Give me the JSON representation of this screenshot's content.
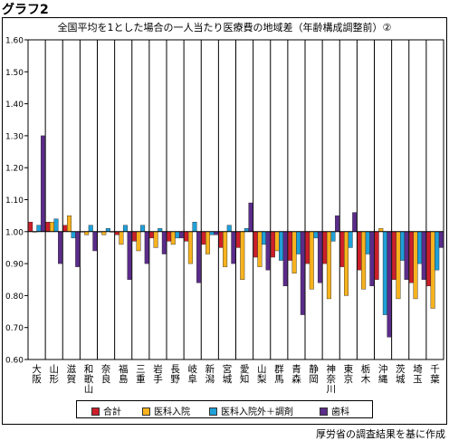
{
  "figure_label": "グラフ2",
  "source_note": "厚労省の調査結果を基に作成",
  "chart_data": {
    "type": "bar",
    "title": "全国平均を1とした場合の一人当たり医療費の地域差（年齢構成調整前）②",
    "xlabel": "",
    "ylabel": "",
    "ylim": [
      0.6,
      1.6
    ],
    "yticks": [
      "0.60",
      "0.70",
      "0.80",
      "0.90",
      "1.00",
      "1.10",
      "1.20",
      "1.30",
      "1.40",
      "1.50",
      "1.60"
    ],
    "baseline": 1.0,
    "grid": false,
    "legend_position": "bottom",
    "categories": [
      "大阪",
      "山形",
      "滋賀",
      "和歌山",
      "奈良",
      "福島",
      "三重",
      "岩手",
      "長野",
      "岐阜",
      "新潟",
      "宮城",
      "愛知",
      "山梨",
      "群馬",
      "青森",
      "静岡",
      "神奈川",
      "東京",
      "栃木",
      "沖縄",
      "茨城",
      "埼玉",
      "千葉"
    ],
    "series": [
      {
        "name": "合計",
        "color": "#cc1f2a",
        "values": [
          1.03,
          1.03,
          1.02,
          1.0,
          1.0,
          0.99,
          0.97,
          0.98,
          0.97,
          0.97,
          0.96,
          0.95,
          0.95,
          0.92,
          0.92,
          0.91,
          0.9,
          0.9,
          0.89,
          0.88,
          0.85,
          0.85,
          0.84,
          0.83
        ]
      },
      {
        "name": "医科入院",
        "color": "#f7b21e",
        "values": [
          1.0,
          1.03,
          1.05,
          0.99,
          0.99,
          0.96,
          0.94,
          0.95,
          0.96,
          0.9,
          0.93,
          0.89,
          0.85,
          0.89,
          0.94,
          0.87,
          0.82,
          0.79,
          0.8,
          0.82,
          1.01,
          0.79,
          0.79,
          0.76
        ]
      },
      {
        "name": "医科入院外＋調剤",
        "color": "#1fa0d8",
        "values": [
          1.02,
          1.04,
          0.98,
          1.02,
          1.01,
          1.02,
          1.02,
          1.01,
          0.98,
          1.03,
          0.99,
          1.02,
          1.01,
          0.96,
          0.91,
          0.93,
          0.98,
          0.97,
          0.95,
          0.93,
          0.74,
          0.91,
          0.9,
          0.88
        ]
      },
      {
        "name": "歯科",
        "color": "#5b2c8a",
        "values": [
          1.3,
          0.9,
          0.89,
          0.94,
          1.0,
          0.85,
          0.9,
          0.93,
          0.98,
          0.84,
          0.99,
          0.9,
          1.09,
          0.88,
          0.83,
          0.74,
          0.84,
          1.05,
          1.06,
          0.83,
          0.67,
          0.85,
          0.85,
          0.95
        ]
      }
    ]
  }
}
